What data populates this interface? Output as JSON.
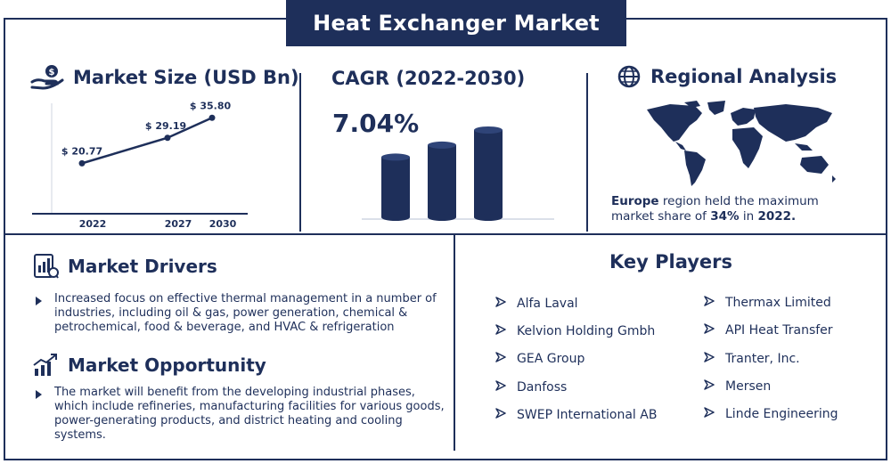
{
  "title": "Heat Exchanger Market",
  "market_size": {
    "heading": "Market Size (USD Bn)",
    "icon": "money-hand-icon"
  },
  "cagr": {
    "heading": "CAGR (2022-2030)",
    "value": "7.04%"
  },
  "regional": {
    "heading": "Regional Analysis",
    "icon": "globe-icon",
    "text_region": "Europe",
    "text_mid": " region held the maximum market share of ",
    "text_share": "34%",
    "text_in": " in ",
    "text_year": "2022."
  },
  "drivers": {
    "heading": "Market Drivers",
    "icon": "chart-document-icon",
    "text": "Increased focus on effective thermal management in a number of industries, including oil & gas, power generation, chemical & petrochemical, food & beverage, and HVAC & refrigeration"
  },
  "opportunity": {
    "heading": "Market Opportunity",
    "icon": "growth-arrow-icon",
    "text": "The market will benefit from the developing industrial phases, which include refineries, manufacturing facilities for various goods, power-generating products, and district heating and cooling systems."
  },
  "key_players": {
    "heading": "Key Players",
    "left": [
      "Alfa Laval",
      "Kelvion Holding Gmbh",
      "GEA Group",
      "Danfoss",
      "SWEP International AB"
    ],
    "right": [
      "Thermax Limited",
      "API Heat Transfer",
      "Tranter, Inc.",
      "Mersen",
      "Linde Engineering"
    ]
  },
  "colors": {
    "navy": "#1e2f5a",
    "accent": "#2c3e6e"
  },
  "chart_data": [
    {
      "type": "line",
      "x": [
        "2022",
        "2027",
        "2030"
      ],
      "values": [
        20.77,
        29.19,
        35.8
      ],
      "labels": [
        "$ 20.77",
        "$ 29.19",
        "$ 35.80"
      ],
      "title": "Market Size (USD Bn)"
    },
    {
      "type": "bar",
      "categories": [
        "",
        "",
        ""
      ],
      "values": [
        1,
        1.2,
        1.45
      ],
      "title": "CAGR (2022-2030)"
    }
  ]
}
